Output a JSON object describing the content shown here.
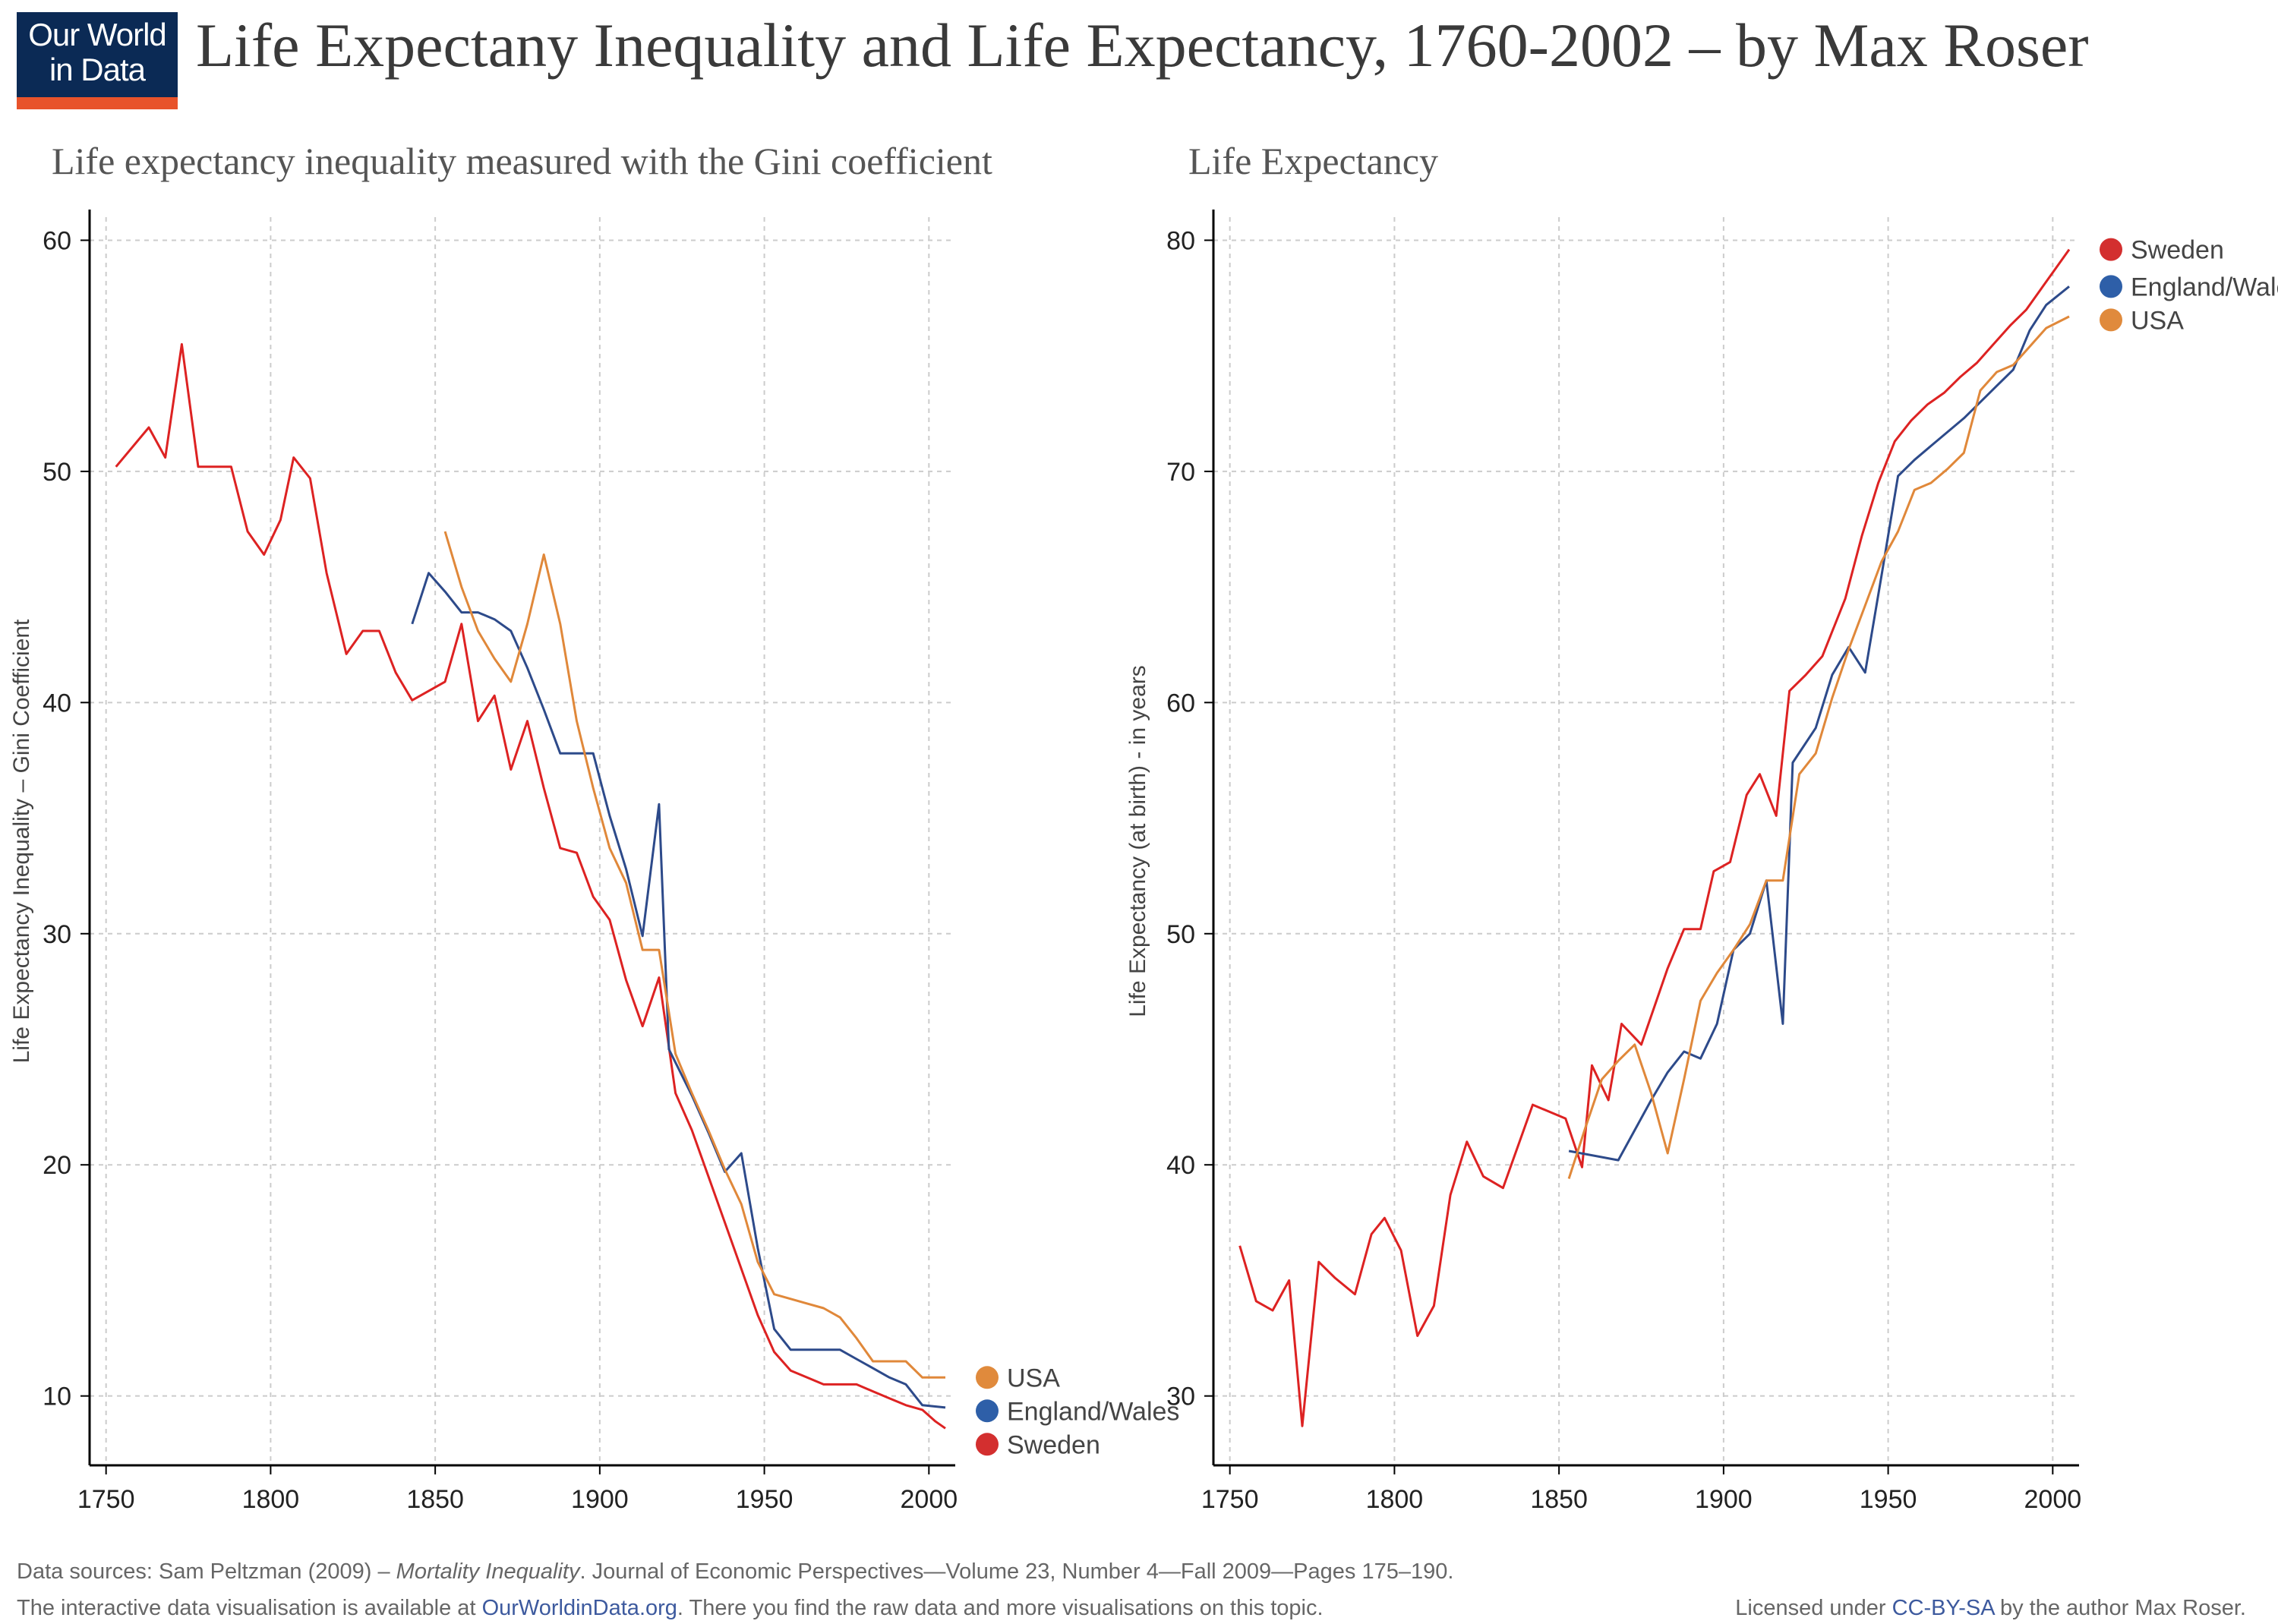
{
  "header": {
    "logo_line1": "Our World",
    "logo_line2": "in Data",
    "title": "Life Expectany Inequality and Life Expectancy, 1760-2002 – by Max Roser"
  },
  "colors": {
    "sweden": "#dd2222",
    "england_wales": "#2d4a8a",
    "usa": "#e0883a",
    "sweden_dot": "#d32f2f",
    "england_wales_dot": "#2e5fa8",
    "usa_dot": "#e08a3c",
    "grid": "#cccccc",
    "axis": "#000000"
  },
  "chart_data": [
    {
      "type": "line",
      "title": "Life expectancy inequality measured with the Gini coefficient",
      "xlabel": "",
      "ylabel": "Life Expectancy Inequality – Gini Coefficient",
      "xlim": [
        1745,
        2008
      ],
      "ylim": [
        7,
        61
      ],
      "xticks": [
        1750,
        1800,
        1850,
        1900,
        1950,
        2000
      ],
      "yticks": [
        10,
        20,
        30,
        40,
        50,
        60
      ],
      "grid": true,
      "legend_placement": "right-end",
      "legend_order": [
        "USA",
        "England/Wales",
        "Sweden"
      ],
      "series": [
        {
          "name": "Sweden",
          "points": [
            [
              1753,
              50.2
            ],
            [
              1763,
              51.9
            ],
            [
              1768,
              50.6
            ],
            [
              1773,
              55.5
            ],
            [
              1778,
              50.2
            ],
            [
              1788,
              50.2
            ],
            [
              1793,
              47.4
            ],
            [
              1798,
              46.4
            ],
            [
              1803,
              47.9
            ],
            [
              1807,
              50.6
            ],
            [
              1812,
              49.7
            ],
            [
              1817,
              45.6
            ],
            [
              1823,
              42.1
            ],
            [
              1828,
              43.1
            ],
            [
              1833,
              43.1
            ],
            [
              1838,
              41.3
            ],
            [
              1843,
              40.1
            ],
            [
              1853,
              40.9
            ],
            [
              1858,
              43.4
            ],
            [
              1863,
              39.2
            ],
            [
              1868,
              40.3
            ],
            [
              1873,
              37.1
            ],
            [
              1878,
              39.2
            ],
            [
              1883,
              36.3
            ],
            [
              1888,
              33.7
            ],
            [
              1893,
              33.5
            ],
            [
              1898,
              31.6
            ],
            [
              1903,
              30.6
            ],
            [
              1908,
              28.0
            ],
            [
              1913,
              26.0
            ],
            [
              1918,
              28.1
            ],
            [
              1923,
              23.1
            ],
            [
              1928,
              21.5
            ],
            [
              1933,
              19.5
            ],
            [
              1938,
              17.5
            ],
            [
              1943,
              15.5
            ],
            [
              1948,
              13.5
            ],
            [
              1953,
              11.9
            ],
            [
              1958,
              11.1
            ],
            [
              1963,
              10.8
            ],
            [
              1968,
              10.5
            ],
            [
              1973,
              10.5
            ],
            [
              1978,
              10.5
            ],
            [
              1983,
              10.2
            ],
            [
              1988,
              9.9
            ],
            [
              1993,
              9.6
            ],
            [
              1998,
              9.4
            ],
            [
              2002,
              8.9
            ],
            [
              2005,
              8.6
            ]
          ]
        },
        {
          "name": "England/Wales",
          "points": [
            [
              1843,
              43.4
            ],
            [
              1848,
              45.6
            ],
            [
              1853,
              44.8
            ],
            [
              1858,
              43.9
            ],
            [
              1863,
              43.9
            ],
            [
              1868,
              43.6
            ],
            [
              1873,
              43.1
            ],
            [
              1878,
              41.5
            ],
            [
              1883,
              39.7
            ],
            [
              1888,
              37.8
            ],
            [
              1893,
              37.8
            ],
            [
              1898,
              37.8
            ],
            [
              1903,
              35.1
            ],
            [
              1908,
              32.8
            ],
            [
              1913,
              29.9
            ],
            [
              1918,
              35.6
            ],
            [
              1921,
              25.0
            ],
            [
              1928,
              23.0
            ],
            [
              1933,
              21.4
            ],
            [
              1938,
              19.7
            ],
            [
              1943,
              20.5
            ],
            [
              1948,
              16.4
            ],
            [
              1953,
              12.9
            ],
            [
              1958,
              12.0
            ],
            [
              1963,
              12.0
            ],
            [
              1968,
              12.0
            ],
            [
              1973,
              12.0
            ],
            [
              1978,
              11.6
            ],
            [
              1983,
              11.2
            ],
            [
              1988,
              10.8
            ],
            [
              1993,
              10.5
            ],
            [
              1998,
              9.6
            ],
            [
              2005,
              9.5
            ]
          ]
        },
        {
          "name": "USA",
          "points": [
            [
              1853,
              47.4
            ],
            [
              1858,
              45.0
            ],
            [
              1863,
              43.1
            ],
            [
              1868,
              41.9
            ],
            [
              1873,
              40.9
            ],
            [
              1878,
              43.4
            ],
            [
              1883,
              46.4
            ],
            [
              1888,
              43.4
            ],
            [
              1893,
              39.2
            ],
            [
              1898,
              36.3
            ],
            [
              1903,
              33.7
            ],
            [
              1908,
              32.2
            ],
            [
              1913,
              29.3
            ],
            [
              1918,
              29.3
            ],
            [
              1923,
              24.8
            ],
            [
              1928,
              23.1
            ],
            [
              1933,
              21.5
            ],
            [
              1938,
              19.8
            ],
            [
              1943,
              18.3
            ],
            [
              1948,
              15.8
            ],
            [
              1953,
              14.4
            ],
            [
              1958,
              14.2
            ],
            [
              1963,
              14.0
            ],
            [
              1968,
              13.8
            ],
            [
              1973,
              13.4
            ],
            [
              1978,
              12.5
            ],
            [
              1983,
              11.5
            ],
            [
              1988,
              11.5
            ],
            [
              1993,
              11.5
            ],
            [
              1998,
              10.8
            ],
            [
              2005,
              10.8
            ]
          ]
        }
      ]
    },
    {
      "type": "line",
      "title": "Life Expectancy",
      "xlabel": "",
      "ylabel": "Life Expectancy (at birth) - in years",
      "xlim": [
        1745,
        2008
      ],
      "ylim": [
        27,
        81
      ],
      "xticks": [
        1750,
        1800,
        1850,
        1900,
        1950,
        2000
      ],
      "yticks": [
        30,
        40,
        50,
        60,
        70,
        80
      ],
      "grid": true,
      "legend_placement": "right-end",
      "legend_order": [
        "Sweden",
        "England/Wales",
        "USA"
      ],
      "series": [
        {
          "name": "Sweden",
          "points": [
            [
              1753,
              36.5
            ],
            [
              1758,
              34.1
            ],
            [
              1763,
              33.7
            ],
            [
              1768,
              35.0
            ],
            [
              1772,
              28.7
            ],
            [
              1777,
              35.8
            ],
            [
              1782,
              35.1
            ],
            [
              1788,
              34.4
            ],
            [
              1793,
              37.0
            ],
            [
              1797,
              37.7
            ],
            [
              1802,
              36.3
            ],
            [
              1807,
              32.6
            ],
            [
              1812,
              33.9
            ],
            [
              1817,
              38.7
            ],
            [
              1822,
              41.0
            ],
            [
              1827,
              39.5
            ],
            [
              1833,
              39.0
            ],
            [
              1842,
              42.6
            ],
            [
              1852,
              42.0
            ],
            [
              1857,
              39.9
            ],
            [
              1860,
              44.3
            ],
            [
              1865,
              42.8
            ],
            [
              1869,
              46.1
            ],
            [
              1875,
              45.2
            ],
            [
              1883,
              48.5
            ],
            [
              1888,
              50.2
            ],
            [
              1893,
              50.2
            ],
            [
              1897,
              52.7
            ],
            [
              1902,
              53.1
            ],
            [
              1907,
              56.0
            ],
            [
              1911,
              56.9
            ],
            [
              1916,
              55.1
            ],
            [
              1920,
              60.5
            ],
            [
              1925,
              61.2
            ],
            [
              1930,
              62.0
            ],
            [
              1937,
              64.5
            ],
            [
              1942,
              67.2
            ],
            [
              1947,
              69.5
            ],
            [
              1952,
              71.3
            ],
            [
              1957,
              72.2
            ],
            [
              1962,
              72.9
            ],
            [
              1967,
              73.4
            ],
            [
              1972,
              74.1
            ],
            [
              1977,
              74.7
            ],
            [
              1982,
              75.5
            ],
            [
              1987,
              76.3
            ],
            [
              1992,
              77.0
            ],
            [
              1997,
              78.0
            ],
            [
              2002,
              79.0
            ],
            [
              2005,
              79.6
            ]
          ]
        },
        {
          "name": "England/Wales",
          "points": [
            [
              1853,
              40.6
            ],
            [
              1868,
              40.2
            ],
            [
              1873,
              41.5
            ],
            [
              1878,
              42.8
            ],
            [
              1883,
              44.0
            ],
            [
              1888,
              44.9
            ],
            [
              1893,
              44.6
            ],
            [
              1898,
              46.1
            ],
            [
              1903,
              49.3
            ],
            [
              1908,
              50.0
            ],
            [
              1913,
              52.3
            ],
            [
              1918,
              46.1
            ],
            [
              1921,
              57.4
            ],
            [
              1928,
              58.9
            ],
            [
              1933,
              61.2
            ],
            [
              1938,
              62.4
            ],
            [
              1943,
              61.3
            ],
            [
              1948,
              65.5
            ],
            [
              1953,
              69.8
            ],
            [
              1958,
              70.5
            ],
            [
              1963,
              71.1
            ],
            [
              1968,
              71.7
            ],
            [
              1973,
              72.3
            ],
            [
              1978,
              73.0
            ],
            [
              1983,
              73.7
            ],
            [
              1988,
              74.4
            ],
            [
              1993,
              76.1
            ],
            [
              1998,
              77.2
            ],
            [
              2005,
              78.0
            ]
          ]
        },
        {
          "name": "USA",
          "points": [
            [
              1853,
              39.4
            ],
            [
              1858,
              41.6
            ],
            [
              1863,
              43.7
            ],
            [
              1868,
              44.5
            ],
            [
              1873,
              45.2
            ],
            [
              1878,
              43.1
            ],
            [
              1883,
              40.5
            ],
            [
              1888,
              43.7
            ],
            [
              1893,
              47.1
            ],
            [
              1898,
              48.3
            ],
            [
              1903,
              49.3
            ],
            [
              1908,
              50.4
            ],
            [
              1913,
              52.3
            ],
            [
              1918,
              52.3
            ],
            [
              1923,
              56.9
            ],
            [
              1928,
              57.8
            ],
            [
              1933,
              60.2
            ],
            [
              1938,
              62.3
            ],
            [
              1943,
              64.2
            ],
            [
              1948,
              66.1
            ],
            [
              1953,
              67.4
            ],
            [
              1958,
              69.2
            ],
            [
              1963,
              69.5
            ],
            [
              1968,
              70.1
            ],
            [
              1973,
              70.8
            ],
            [
              1978,
              73.5
            ],
            [
              1983,
              74.3
            ],
            [
              1988,
              74.6
            ],
            [
              1993,
              75.4
            ],
            [
              1998,
              76.2
            ],
            [
              2005,
              76.7
            ]
          ]
        }
      ]
    }
  ],
  "footer": {
    "source_prefix": "Data sources: Sam Peltzman (2009) – ",
    "source_italic": "Mortality Inequality",
    "source_suffix": ". Journal of Economic Perspectives—Volume 23, Number 4—Fall 2009—Pages 175–190.",
    "interactive_prefix": "The interactive data visualisation is available at ",
    "interactive_link": "OurWorldinData.org",
    "interactive_suffix": ". There you find the raw data and more visualisations on this topic.",
    "license_prefix": "Licensed under ",
    "license_link": "CC-BY-SA",
    "license_suffix": " by the author Max Roser."
  }
}
